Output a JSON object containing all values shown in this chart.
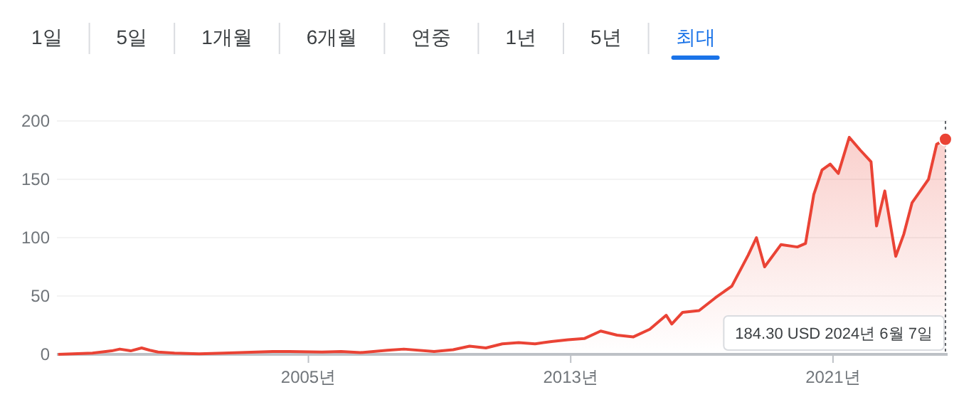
{
  "chart_data": {
    "type": "area",
    "color": "#ea4335",
    "annotations": [
      "1일",
      "5일",
      "1개월",
      "6개월",
      "연중",
      "1년",
      "5년",
      "최대",
      "184.30 USD  2024년 6월 7일"
    ],
    "x": [
      "1997-05-15",
      "1998-06",
      "1999-01",
      "1999-04",
      "1999-08",
      "1999-12",
      "2000-03",
      "2000-06",
      "2000-12",
      "2001-09",
      "2002-06",
      "2003-06",
      "2003-12",
      "2004-06",
      "2005-06",
      "2006-01",
      "2006-08",
      "2007-06",
      "2007-12",
      "2008-11",
      "2009-06",
      "2009-12",
      "2010-06",
      "2010-12",
      "2011-06",
      "2011-12",
      "2012-06",
      "2012-12",
      "2013-06",
      "2013-12",
      "2014-06",
      "2014-12",
      "2015-06",
      "2015-12",
      "2016-02",
      "2016-06",
      "2016-12",
      "2017-06",
      "2017-12",
      "2018-06",
      "2018-09",
      "2018-12",
      "2019-06",
      "2019-12",
      "2020-03",
      "2020-06",
      "2020-09",
      "2020-12",
      "2021-03",
      "2021-07",
      "2021-11",
      "2022-03",
      "2022-05",
      "2022-08",
      "2022-12",
      "2023-03",
      "2023-06",
      "2023-09",
      "2023-12",
      "2024-03",
      "2024-06-07"
    ],
    "values": [
      0,
      1,
      3,
      4.5,
      3,
      5.5,
      3.5,
      2,
      1,
      0.5,
      1,
      2,
      2.5,
      2.5,
      2,
      2.5,
      1.5,
      3.5,
      4.5,
      2.5,
      4,
      7,
      5.5,
      9,
      10,
      9,
      11,
      12.5,
      13.5,
      20,
      16.5,
      15,
      21.5,
      33.5,
      26,
      36,
      37.5,
      48.5,
      58.5,
      85,
      100,
      75,
      94,
      92,
      95,
      137,
      158,
      163,
      155,
      186,
      175,
      165,
      110,
      140,
      84,
      103,
      130,
      140,
      150,
      180,
      184.3
    ],
    "xlim": [
      "1997-05",
      "2024-07"
    ],
    "xticks": [
      {
        "value": "2005",
        "label": "2005년"
      },
      {
        "value": "2013",
        "label": "2013년"
      },
      {
        "value": "2021",
        "label": "2021년"
      }
    ],
    "ylim": [
      0,
      200
    ],
    "yticks": [
      0,
      50,
      100,
      150,
      200
    ],
    "grid": "y",
    "marker": "none",
    "line_style": "solid"
  }
}
